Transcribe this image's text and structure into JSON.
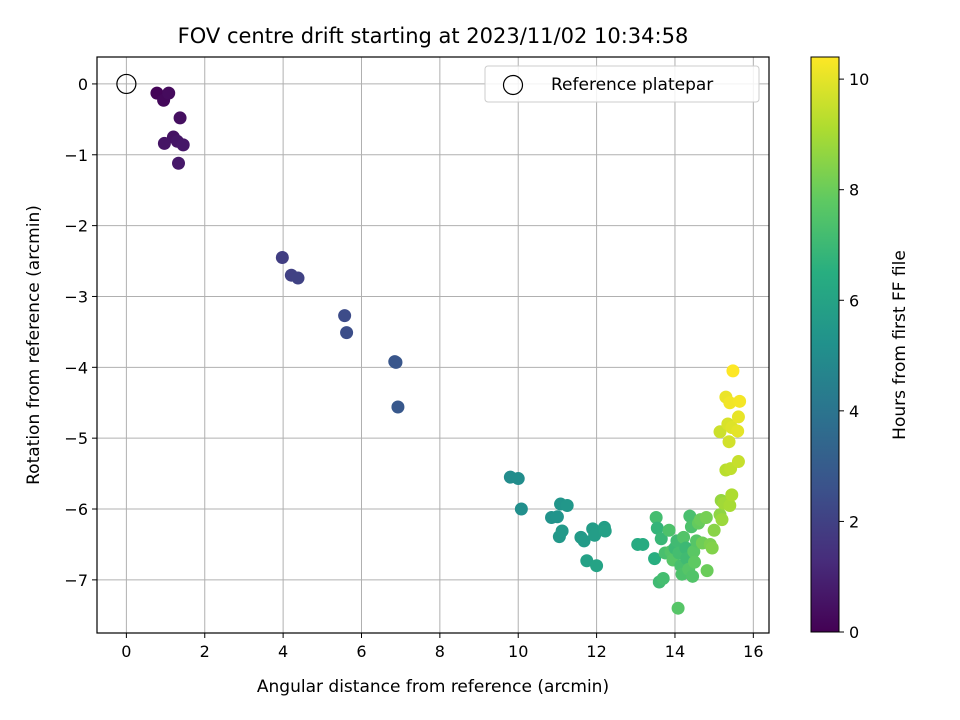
{
  "chart_data": {
    "type": "scatter",
    "title": "FOV centre drift starting at 2023/11/02 10:34:58",
    "xlabel": "Angular distance from reference (arcmin)",
    "ylabel": "Rotation from reference (arcmin)",
    "xlim": [
      -0.75,
      16.4
    ],
    "ylim": [
      -7.75,
      0.38
    ],
    "xticks": [
      0,
      2,
      4,
      6,
      8,
      10,
      12,
      14,
      16
    ],
    "yticks": [
      0,
      -1,
      -2,
      -3,
      -4,
      -5,
      -6,
      -7
    ],
    "grid": true,
    "legend": {
      "placement": "top-right",
      "entries": [
        "Reference platepar"
      ]
    },
    "colorbar": {
      "label": "Hours from first FF file",
      "range": [
        0,
        10.4
      ],
      "ticks": [
        0,
        2,
        4,
        6,
        8,
        10
      ],
      "colormap": "viridis"
    },
    "reference_point": {
      "x": 0,
      "y": 0
    },
    "points": [
      {
        "x": 0.78,
        "y": -0.13,
        "t": 0.1
      },
      {
        "x": 0.95,
        "y": -0.23,
        "t": 0.2
      },
      {
        "x": 1.08,
        "y": -0.13,
        "t": 0.3
      },
      {
        "x": 1.37,
        "y": -0.48,
        "t": 0.4
      },
      {
        "x": 1.2,
        "y": -0.75,
        "t": 0.5
      },
      {
        "x": 0.97,
        "y": -0.84,
        "t": 0.55
      },
      {
        "x": 1.3,
        "y": -0.81,
        "t": 0.6
      },
      {
        "x": 1.45,
        "y": -0.86,
        "t": 0.65
      },
      {
        "x": 1.33,
        "y": -1.12,
        "t": 0.7
      },
      {
        "x": 3.98,
        "y": -2.45,
        "t": 1.9
      },
      {
        "x": 4.21,
        "y": -2.7,
        "t": 2.0
      },
      {
        "x": 4.38,
        "y": -2.74,
        "t": 2.05
      },
      {
        "x": 5.57,
        "y": -3.27,
        "t": 2.4
      },
      {
        "x": 5.62,
        "y": -3.51,
        "t": 2.45
      },
      {
        "x": 6.85,
        "y": -3.92,
        "t": 2.75
      },
      {
        "x": 6.88,
        "y": -3.93,
        "t": 2.78
      },
      {
        "x": 6.93,
        "y": -4.56,
        "t": 2.85
      },
      {
        "x": 9.8,
        "y": -5.55,
        "t": 5.0
      },
      {
        "x": 10.0,
        "y": -5.57,
        "t": 5.05
      },
      {
        "x": 10.08,
        "y": -6.0,
        "t": 5.1
      },
      {
        "x": 10.85,
        "y": -6.12,
        "t": 5.3
      },
      {
        "x": 11.0,
        "y": -6.11,
        "t": 5.35
      },
      {
        "x": 11.08,
        "y": -5.93,
        "t": 5.4
      },
      {
        "x": 11.25,
        "y": -5.95,
        "t": 5.45
      },
      {
        "x": 11.05,
        "y": -6.39,
        "t": 5.5
      },
      {
        "x": 11.12,
        "y": -6.31,
        "t": 5.55
      },
      {
        "x": 11.6,
        "y": -6.4,
        "t": 5.6
      },
      {
        "x": 11.68,
        "y": -6.45,
        "t": 5.65
      },
      {
        "x": 11.9,
        "y": -6.28,
        "t": 5.7
      },
      {
        "x": 11.95,
        "y": -6.37,
        "t": 5.75
      },
      {
        "x": 12.2,
        "y": -6.26,
        "t": 5.8
      },
      {
        "x": 12.22,
        "y": -6.31,
        "t": 5.85
      },
      {
        "x": 11.75,
        "y": -6.73,
        "t": 5.9
      },
      {
        "x": 12.0,
        "y": -6.8,
        "t": 6.0
      },
      {
        "x": 13.05,
        "y": -6.5,
        "t": 6.3
      },
      {
        "x": 13.18,
        "y": -6.5,
        "t": 6.35
      },
      {
        "x": 13.48,
        "y": -6.7,
        "t": 6.5
      },
      {
        "x": 13.52,
        "y": -6.12,
        "t": 7.2
      },
      {
        "x": 13.55,
        "y": -6.27,
        "t": 6.8
      },
      {
        "x": 13.65,
        "y": -6.42,
        "t": 6.9
      },
      {
        "x": 13.6,
        "y": -7.03,
        "t": 7.1
      },
      {
        "x": 13.7,
        "y": -6.98,
        "t": 7.2
      },
      {
        "x": 13.75,
        "y": -6.62,
        "t": 7.3
      },
      {
        "x": 13.85,
        "y": -6.3,
        "t": 7.4
      },
      {
        "x": 13.9,
        "y": -6.6,
        "t": 7.5
      },
      {
        "x": 13.95,
        "y": -6.72,
        "t": 7.6
      },
      {
        "x": 14.0,
        "y": -6.55,
        "t": 7.0
      },
      {
        "x": 14.05,
        "y": -6.45,
        "t": 7.1
      },
      {
        "x": 14.1,
        "y": -6.62,
        "t": 7.2
      },
      {
        "x": 14.15,
        "y": -6.8,
        "t": 7.3
      },
      {
        "x": 14.18,
        "y": -6.92,
        "t": 7.4
      },
      {
        "x": 14.22,
        "y": -6.4,
        "t": 7.5
      },
      {
        "x": 14.28,
        "y": -6.55,
        "t": 7.0
      },
      {
        "x": 14.3,
        "y": -6.7,
        "t": 7.1
      },
      {
        "x": 14.35,
        "y": -6.85,
        "t": 7.6
      },
      {
        "x": 14.38,
        "y": -6.1,
        "t": 7.3
      },
      {
        "x": 14.42,
        "y": -6.25,
        "t": 7.4
      },
      {
        "x": 14.45,
        "y": -6.95,
        "t": 7.5
      },
      {
        "x": 14.48,
        "y": -6.6,
        "t": 7.7
      },
      {
        "x": 14.5,
        "y": -6.75,
        "t": 7.8
      },
      {
        "x": 14.55,
        "y": -6.45,
        "t": 7.6
      },
      {
        "x": 14.6,
        "y": -6.2,
        "t": 7.9
      },
      {
        "x": 14.65,
        "y": -6.15,
        "t": 8.0
      },
      {
        "x": 14.7,
        "y": -6.48,
        "t": 8.1
      },
      {
        "x": 14.8,
        "y": -6.12,
        "t": 8.2
      },
      {
        "x": 14.82,
        "y": -6.87,
        "t": 8.0
      },
      {
        "x": 14.9,
        "y": -6.5,
        "t": 8.3
      },
      {
        "x": 14.95,
        "y": -6.55,
        "t": 8.4
      },
      {
        "x": 15.0,
        "y": -6.3,
        "t": 8.5
      },
      {
        "x": 14.08,
        "y": -7.4,
        "t": 7.6
      },
      {
        "x": 15.15,
        "y": -6.08,
        "t": 8.6
      },
      {
        "x": 15.18,
        "y": -5.88,
        "t": 8.7
      },
      {
        "x": 15.2,
        "y": -6.15,
        "t": 8.8
      },
      {
        "x": 15.25,
        "y": -5.92,
        "t": 8.9
      },
      {
        "x": 15.4,
        "y": -5.95,
        "t": 9.0
      },
      {
        "x": 15.45,
        "y": -5.8,
        "t": 9.1
      },
      {
        "x": 15.3,
        "y": -5.45,
        "t": 9.3
      },
      {
        "x": 15.42,
        "y": -5.43,
        "t": 9.4
      },
      {
        "x": 15.62,
        "y": -5.33,
        "t": 9.5
      },
      {
        "x": 15.15,
        "y": -4.91,
        "t": 9.6
      },
      {
        "x": 15.38,
        "y": -5.05,
        "t": 9.7
      },
      {
        "x": 15.35,
        "y": -4.8,
        "t": 9.8
      },
      {
        "x": 15.45,
        "y": -4.85,
        "t": 9.9
      },
      {
        "x": 15.6,
        "y": -4.9,
        "t": 10.0
      },
      {
        "x": 15.62,
        "y": -4.7,
        "t": 10.05
      },
      {
        "x": 15.3,
        "y": -4.42,
        "t": 10.1
      },
      {
        "x": 15.4,
        "y": -4.5,
        "t": 10.2
      },
      {
        "x": 15.65,
        "y": -4.48,
        "t": 10.25
      },
      {
        "x": 15.48,
        "y": -4.05,
        "t": 10.4
      }
    ]
  }
}
